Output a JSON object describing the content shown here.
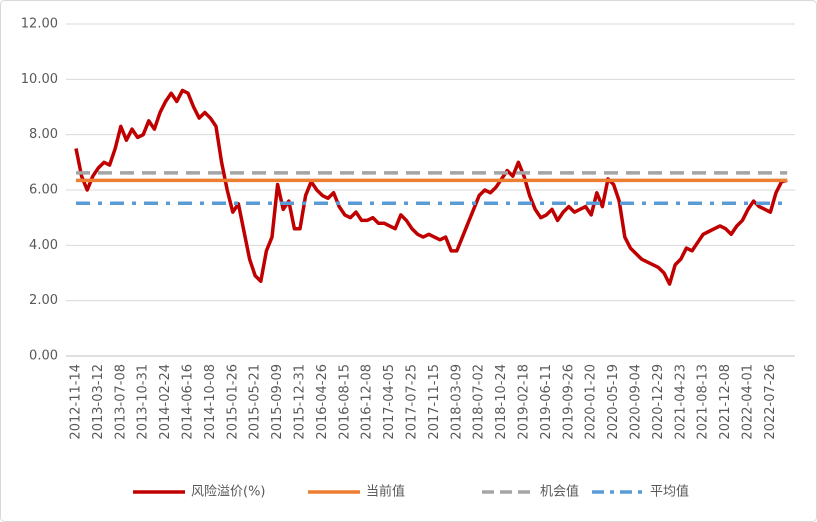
{
  "chart_data": {
    "type": "line",
    "categories": [
      "2012-11-14",
      null,
      null,
      null,
      "2013-03-12",
      null,
      null,
      null,
      "2013-07-08",
      null,
      null,
      null,
      "2013-10-31",
      null,
      null,
      null,
      "2014-02-24",
      null,
      null,
      null,
      "2014-06-16",
      null,
      null,
      null,
      "2014-10-08",
      null,
      null,
      null,
      "2015-01-26",
      null,
      null,
      null,
      "2015-05-21",
      null,
      null,
      null,
      "2015-09-09",
      null,
      null,
      null,
      "2015-12-31",
      null,
      null,
      null,
      "2016-04-26",
      null,
      null,
      null,
      "2016-08-15",
      null,
      null,
      null,
      "2016-12-08",
      null,
      null,
      null,
      "2017-04-05",
      null,
      null,
      null,
      "2017-07-25",
      null,
      null,
      null,
      "2017-11-15",
      null,
      null,
      null,
      "2018-03-09",
      null,
      null,
      null,
      "2018-07-02",
      null,
      null,
      null,
      "2018-10-24",
      null,
      null,
      null,
      "2019-02-18",
      null,
      null,
      null,
      "2019-06-11",
      null,
      null,
      null,
      "2019-09-26",
      null,
      null,
      null,
      "2020-01-20",
      null,
      null,
      null,
      "2020-05-19",
      null,
      null,
      null,
      "2020-09-04",
      null,
      null,
      null,
      "2020-12-29",
      null,
      null,
      null,
      "2021-04-23",
      null,
      null,
      null,
      "2021-08-13",
      null,
      null,
      null,
      "2021-12-08",
      null,
      null,
      null,
      "2022-04-01",
      null,
      null,
      null,
      "2022-07-26",
      null,
      null,
      null
    ],
    "series": [
      {
        "name": "风险溢价(%)",
        "color": "#c00000",
        "style": "solid",
        "values": [
          7.5,
          6.5,
          6.0,
          6.5,
          6.8,
          7.0,
          6.9,
          7.5,
          8.3,
          7.8,
          8.2,
          7.9,
          8.0,
          8.5,
          8.2,
          8.8,
          9.2,
          9.5,
          9.2,
          9.6,
          9.5,
          9.0,
          8.6,
          8.8,
          8.6,
          8.3,
          7.0,
          6.0,
          5.2,
          5.5,
          4.5,
          3.5,
          2.9,
          2.7,
          3.8,
          4.3,
          6.2,
          5.3,
          5.6,
          4.6,
          4.6,
          5.8,
          6.3,
          6.0,
          5.8,
          5.7,
          5.9,
          5.4,
          5.1,
          5.0,
          5.2,
          4.9,
          4.9,
          5.0,
          4.8,
          4.8,
          4.7,
          4.6,
          5.1,
          4.9,
          4.6,
          4.4,
          4.3,
          4.4,
          4.3,
          4.2,
          4.3,
          3.8,
          3.8,
          4.3,
          4.8,
          5.3,
          5.8,
          6.0,
          5.9,
          6.1,
          6.4,
          6.7,
          6.5,
          7.0,
          6.5,
          5.8,
          5.3,
          5.0,
          5.1,
          5.3,
          4.9,
          5.2,
          5.4,
          5.2,
          5.3,
          5.4,
          5.1,
          5.9,
          5.4,
          6.4,
          6.2,
          5.6,
          4.3,
          3.9,
          3.7,
          3.5,
          3.4,
          3.3,
          3.2,
          3.0,
          2.6,
          3.3,
          3.5,
          3.9,
          3.8,
          4.1,
          4.4,
          4.5,
          4.6,
          4.7,
          4.6,
          4.4,
          4.7,
          4.9,
          5.3,
          5.6,
          5.4,
          5.3,
          5.2,
          5.9,
          6.3,
          6.35
        ]
      },
      {
        "name": "当前值",
        "color": "#ed7d31",
        "style": "solid",
        "value": 6.35
      },
      {
        "name": "机会值",
        "color": "#a5a5a5",
        "style": "dash",
        "value": 6.62
      },
      {
        "name": "平均值",
        "color": "#5b9bd5",
        "style": "dashdot",
        "value": 5.52
      }
    ],
    "ylim": [
      0,
      12
    ],
    "yticks": [
      {
        "value": 0,
        "label": "0.00"
      },
      {
        "value": 2,
        "label": "2.00"
      },
      {
        "value": 4,
        "label": "4.00"
      },
      {
        "value": 6,
        "label": "6.00"
      },
      {
        "value": 8,
        "label": "8.00"
      },
      {
        "value": 10,
        "label": "10.00"
      },
      {
        "value": 12,
        "label": "12.00"
      }
    ],
    "grid": true,
    "legend": "bottom"
  }
}
